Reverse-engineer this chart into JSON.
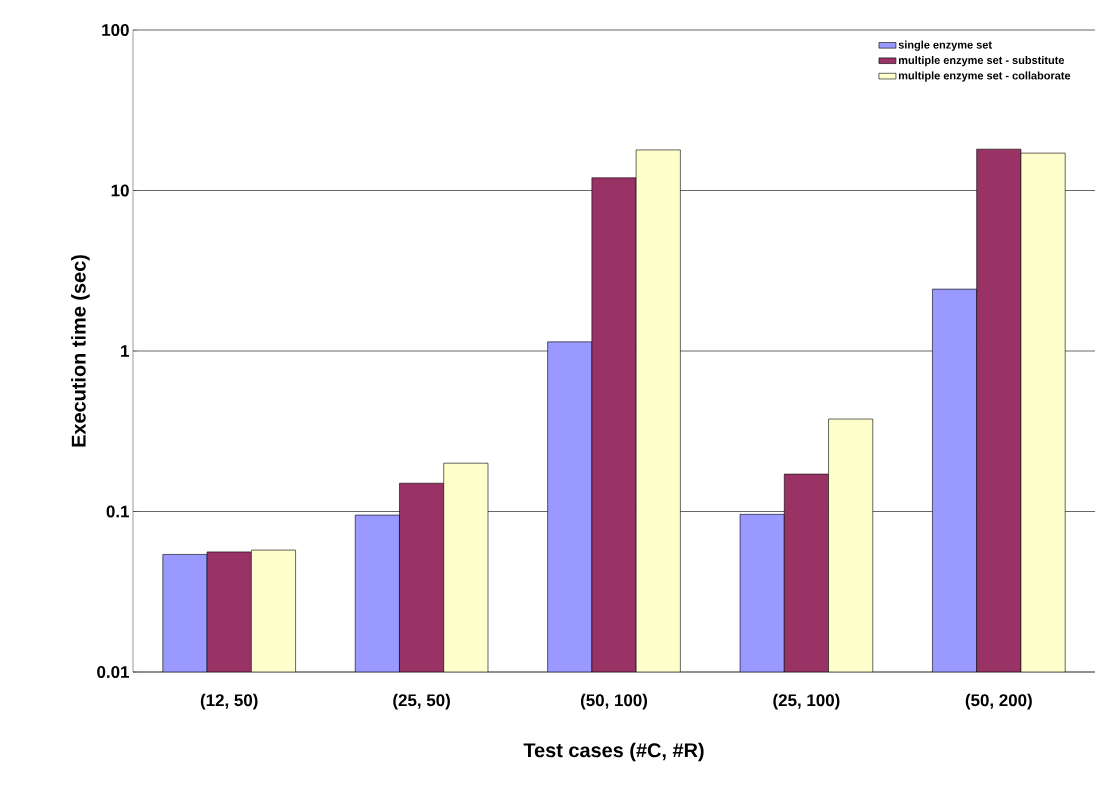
{
  "chart_data": {
    "type": "bar",
    "xlabel": "Test cases (#C, #R)",
    "ylabel": "Execution time (sec)",
    "categories": [
      "(12, 50)",
      "(25, 50)",
      "(50, 100)",
      "(25, 100)",
      "(50, 200)"
    ],
    "series": [
      {
        "name": "single enzyme set",
        "color": "#9999ff",
        "values": [
          0.054,
          0.095,
          1.14,
          0.096,
          2.43
        ]
      },
      {
        "name": "multiple enzyme set - substitute",
        "color": "#993366",
        "values": [
          0.056,
          0.15,
          12,
          0.171,
          18.1
        ]
      },
      {
        "name": "multiple enzyme set - collaborate",
        "color": "#ffffcc",
        "values": [
          0.0575,
          0.2,
          17.9,
          0.377,
          17.1
        ]
      }
    ],
    "log": "y",
    "ylim": [
      0.01,
      100
    ],
    "yticks": [
      0.01,
      0.1,
      1,
      10,
      100
    ],
    "grid": "y",
    "legend": "top right"
  }
}
